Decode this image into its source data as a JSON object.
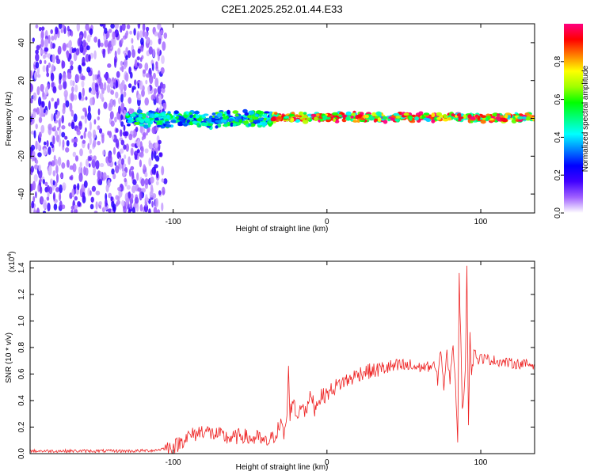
{
  "figure_title": "C2E1.2025.252.01.44.E33",
  "chart_data": [
    {
      "type": "heatmap",
      "title": "C2E1.2025.252.01.44.E33",
      "xlabel": "Height of straight line (km)",
      "ylabel": "Frequency (Hz)",
      "xlim": [
        -193,
        135
      ],
      "ylim": [
        -50,
        50
      ],
      "xticks": [
        -100,
        0,
        100
      ],
      "xtick_labels": [
        "-100",
        "0",
        "100"
      ],
      "yticks": [
        -40,
        -20,
        0,
        20,
        40
      ],
      "ytick_labels": [
        "-40",
        "-20",
        "0",
        "20",
        "40"
      ],
      "colorbar": {
        "label": "Normalized spectral amplitude",
        "range": [
          0.0,
          1.0
        ],
        "ticks": [
          0.0,
          0.2,
          0.4,
          0.6,
          0.8
        ],
        "tick_labels": [
          "0.0",
          "0.2",
          "0.4",
          "0.6",
          "0.8"
        ],
        "colormap": [
          "#ffffff",
          "#a060ff",
          "#4000ff",
          "#0000ff",
          "#0080ff",
          "#00ffff",
          "#00ff80",
          "#00ff00",
          "#a0ff00",
          "#ffff00",
          "#ff8000",
          "#ff0000",
          "#ff0080"
        ]
      },
      "regions": [
        {
          "x_range": [
            -193,
            -105
          ],
          "description": "broadband scattered noise",
          "freq_range": [
            -50,
            50
          ],
          "amplitude": 0.15
        },
        {
          "x_range": [
            -130,
            -35
          ],
          "description": "narrow band around 0 Hz",
          "freq_range": [
            -5,
            4
          ],
          "amplitude": 0.45
        },
        {
          "x_range": [
            -35,
            135
          ],
          "description": "strong narrow band at ~0 Hz",
          "freq_range": [
            -2,
            3
          ],
          "amplitude": 0.75
        }
      ]
    },
    {
      "type": "line",
      "xlabel": "Height of straight line (km)",
      "ylabel": "SNR (10 * v/v)",
      "y_scale_label": "(x10",
      "y_scale_exponent": "4",
      "xlim": [
        -193,
        135
      ],
      "ylim": [
        0.0,
        1.45
      ],
      "xticks": [
        -100,
        0,
        100
      ],
      "xtick_labels": [
        "-100",
        "0",
        "100"
      ],
      "yticks": [
        0.0,
        0.2,
        0.4,
        0.6,
        0.8,
        1.0,
        1.2,
        1.4
      ],
      "ytick_labels": [
        "0.0",
        "0.2",
        "0.4",
        "0.6",
        "0.8",
        "1.0",
        "1.2",
        "1.4"
      ],
      "color": "#ee2222",
      "series": [
        {
          "name": "SNR",
          "x": [
            -193,
            -180,
            -160,
            -140,
            -125,
            -112,
            -105,
            -98,
            -92,
            -85,
            -80,
            -75,
            -70,
            -65,
            -60,
            -55,
            -50,
            -45,
            -40,
            -35,
            -30,
            -28,
            -26,
            -25,
            -24,
            -22,
            -20,
            -18,
            -16,
            -14,
            -12,
            -10,
            -8,
            -5,
            0,
            5,
            10,
            15,
            20,
            25,
            30,
            35,
            40,
            50,
            60,
            70,
            72,
            74,
            76,
            78,
            80,
            82,
            84,
            85,
            86,
            87,
            88,
            90,
            91,
            92,
            93,
            94,
            96,
            98,
            100,
            110,
            120,
            135
          ],
          "y": [
            0.02,
            0.02,
            0.02,
            0.02,
            0.02,
            0.025,
            0.04,
            0.06,
            0.12,
            0.15,
            0.18,
            0.15,
            0.14,
            0.12,
            0.12,
            0.14,
            0.11,
            0.12,
            0.08,
            0.12,
            0.22,
            0.14,
            0.28,
            0.62,
            0.3,
            0.42,
            0.28,
            0.32,
            0.4,
            0.3,
            0.38,
            0.45,
            0.34,
            0.42,
            0.45,
            0.5,
            0.54,
            0.56,
            0.6,
            0.62,
            0.62,
            0.64,
            0.65,
            0.66,
            0.65,
            0.66,
            0.55,
            0.8,
            0.5,
            0.75,
            0.55,
            0.85,
            0.4,
            0.1,
            1.35,
            0.85,
            0.3,
            0.65,
            1.44,
            0.25,
            0.9,
            0.6,
            0.8,
            0.7,
            0.72,
            0.7,
            0.68,
            0.67
          ]
        }
      ]
    }
  ]
}
